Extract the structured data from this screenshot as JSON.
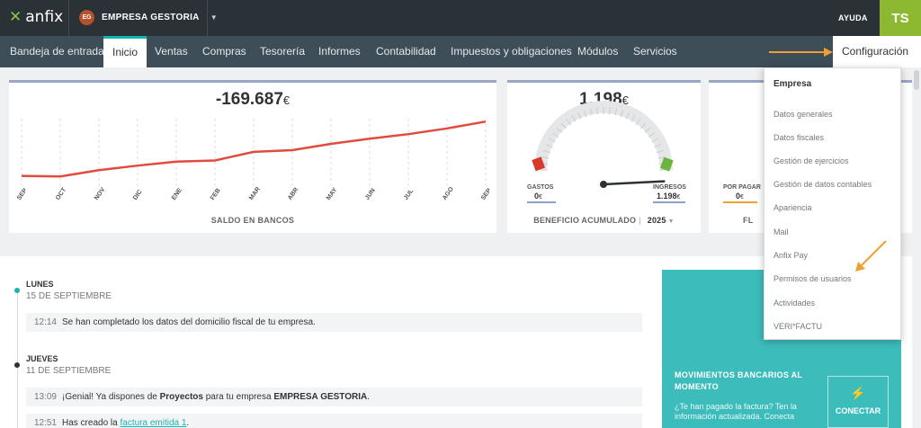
{
  "topbar": {
    "logo_mark": "✕",
    "logo_text": "anfix",
    "company_badge": "EG",
    "company_name": "EMPRESA GESTORIA",
    "help": "AYUDA",
    "user_initials": "TS"
  },
  "nav": {
    "items": [
      "Bandeja de entrada",
      "Inicio",
      "Ventas",
      "Compras",
      "Tesorería",
      "Informes",
      "Contabilidad",
      "Impuestos y obligaciones",
      "Módulos",
      "Servicios"
    ],
    "active": "Inicio",
    "config": "Configuración"
  },
  "bank_card": {
    "value": "-169.687",
    "currency": "€",
    "label": "SALDO EN BANCOS",
    "chart_data": {
      "type": "line",
      "categories": [
        "SEP",
        "OCT",
        "NOV",
        "DIC",
        "ENE",
        "FEB",
        "MAR",
        "ABR",
        "MAY",
        "JUN",
        "JUL",
        "AGO",
        "SEP"
      ],
      "series": [
        {
          "values": [
            -100,
            -101,
            -90,
            -82,
            -75,
            -73,
            -58,
            -55,
            -44,
            -35,
            -27,
            -17,
            -5
          ]
        }
      ],
      "color": "#e04b3c"
    }
  },
  "benefit_card": {
    "value": "1.198",
    "currency": "€",
    "gastos_label": "GASTOS",
    "gastos_value": "0",
    "ingresos_label": "INGRESOS",
    "ingresos_value": "1.198",
    "label": "BENEFICIO ACUMULADO",
    "year": "2025",
    "gauge_level": 0.97
  },
  "third_card": {
    "por_pagar_label": "POR PAGAR",
    "por_pagar_value": "0",
    "label_partial": "FL"
  },
  "timeline": [
    {
      "day": "LUNES",
      "date": "15 DE SEPTIEMBRE",
      "time": "12:14",
      "text": "Se han completado los datos del domicilio fiscal de tu empresa."
    },
    {
      "day": "JUEVES",
      "date": "11 DE SEPTIEMBRE",
      "time": "13:09",
      "text_a": "¡Genial! Ya dispones de ",
      "text_b": "Proyectos",
      "text_c": " para tu empresa ",
      "text_d": "EMPRESA GESTORIA",
      "text_e": "."
    },
    {
      "time": "12:51",
      "text_a": "Has creado la ",
      "link": "factura emitida 1",
      "text_b": "."
    }
  ],
  "promo": {
    "title": "MOVIMIENTOS BANCARIOS AL MOMENTO",
    "body": "¿Te han pagado la factura? Ten la información actualizada. Conecta",
    "button": "CONECTAR"
  },
  "dropdown": {
    "header": "Empresa",
    "items": [
      "Datos generales",
      "Datos fiscales",
      "Gestión de ejercicios",
      "Gestión de datos contables",
      "Apariencia",
      "Mail",
      "Anfix Pay",
      "Permisos de usuarios",
      "Actividades",
      "VERI*FACTU"
    ]
  },
  "colors": {
    "topbar": "#2b3237",
    "nav": "#3e4e59",
    "accent": "#16b6b0",
    "user": "#8cb832",
    "arrow": "#f0a030"
  }
}
